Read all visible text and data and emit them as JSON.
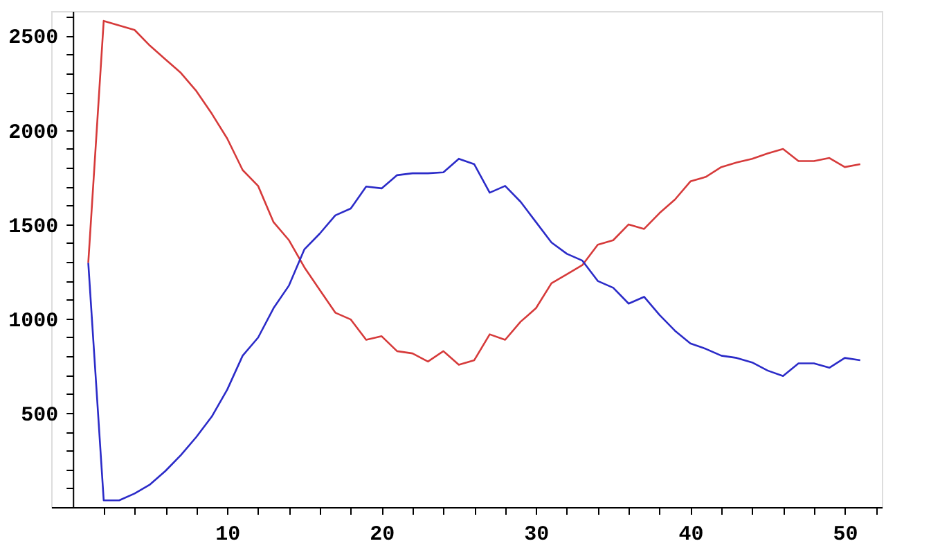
{
  "chart_data": {
    "type": "line",
    "x": [
      1,
      2,
      3,
      4,
      5,
      6,
      7,
      8,
      9,
      10,
      11,
      12,
      13,
      14,
      15,
      16,
      17,
      18,
      19,
      20,
      21,
      22,
      23,
      24,
      25,
      26,
      27,
      28,
      29,
      30,
      31,
      32,
      33,
      34,
      35,
      36,
      37,
      38,
      39,
      40,
      41,
      42,
      43,
      44,
      45,
      46,
      47,
      48,
      49,
      50,
      51
    ],
    "series": [
      {
        "color": "#d63a3a",
        "values": [
          1295,
          2578,
          2554,
          2530,
          2446,
          2374,
          2302,
          2206,
          2086,
          1954,
          1787,
          1703,
          1511,
          1415,
          1271,
          1151,
          1031,
          995,
          887,
          906,
          827,
          815,
          772,
          827,
          755,
          779,
          916,
          887,
          983,
          1055,
          1187,
          1235,
          1283,
          1391,
          1415,
          1499,
          1475,
          1559,
          1631,
          1727,
          1751,
          1803,
          1827,
          1847,
          1875,
          1899,
          1835,
          1835,
          1851,
          1803,
          1818
        ]
      },
      {
        "color": "#2b2bc8",
        "values": [
          1295,
          36,
          36,
          72,
          120,
          192,
          276,
          372,
          480,
          623,
          803,
          899,
          1055,
          1175,
          1367,
          1451,
          1547,
          1583,
          1700,
          1690,
          1760,
          1770,
          1770,
          1775,
          1847,
          1818,
          1667,
          1703,
          1619,
          1511,
          1403,
          1343,
          1307,
          1199,
          1163,
          1079,
          1115,
          1019,
          935,
          868,
          839,
          803,
          791,
          767,
          724,
          695,
          762,
          762,
          739,
          791,
          779
        ]
      }
    ],
    "xlim": [
      -1.4,
      52.4
    ],
    "ylim": [
      0,
      2630
    ],
    "xticks": [
      {
        "value": 2,
        "label": null
      },
      {
        "value": 4,
        "label": null
      },
      {
        "value": 6,
        "label": null
      },
      {
        "value": 8,
        "label": null
      },
      10,
      {
        "value": 12,
        "label": null
      },
      {
        "value": 14,
        "label": null
      },
      {
        "value": 16,
        "label": null
      },
      {
        "value": 18,
        "label": null
      },
      20,
      {
        "value": 22,
        "label": null
      },
      {
        "value": 24,
        "label": null
      },
      {
        "value": 26,
        "label": null
      },
      {
        "value": 28,
        "label": null
      },
      30,
      {
        "value": 32,
        "label": null
      },
      {
        "value": 34,
        "label": null
      },
      {
        "value": 36,
        "label": null
      },
      {
        "value": 38,
        "label": null
      },
      40,
      {
        "value": 42,
        "label": null
      },
      {
        "value": 44,
        "label": null
      },
      {
        "value": 46,
        "label": null
      },
      {
        "value": 48,
        "label": null
      },
      50,
      {
        "value": 52,
        "label": null
      }
    ],
    "yticks": [
      {
        "value": 100,
        "label": null
      },
      {
        "value": 200,
        "label": null
      },
      {
        "value": 300,
        "label": null
      },
      {
        "value": 400,
        "label": null
      },
      500,
      {
        "value": 600,
        "label": null
      },
      {
        "value": 700,
        "label": null
      },
      {
        "value": 800,
        "label": null
      },
      {
        "value": 900,
        "label": null
      },
      1000,
      {
        "value": 1100,
        "label": null
      },
      {
        "value": 1200,
        "label": null
      },
      {
        "value": 1300,
        "label": null
      },
      {
        "value": 1400,
        "label": null
      },
      1500,
      {
        "value": 1600,
        "label": null
      },
      {
        "value": 1700,
        "label": null
      },
      {
        "value": 1800,
        "label": null
      },
      {
        "value": 1900,
        "label": null
      },
      2000,
      {
        "value": 2100,
        "label": null
      },
      {
        "value": 2200,
        "label": null
      },
      {
        "value": 2300,
        "label": null
      },
      {
        "value": 2400,
        "label": null
      },
      2500,
      {
        "value": 2600,
        "label": null
      }
    ],
    "grid": false,
    "legend": false,
    "marker": "none",
    "line_style": "solid"
  }
}
